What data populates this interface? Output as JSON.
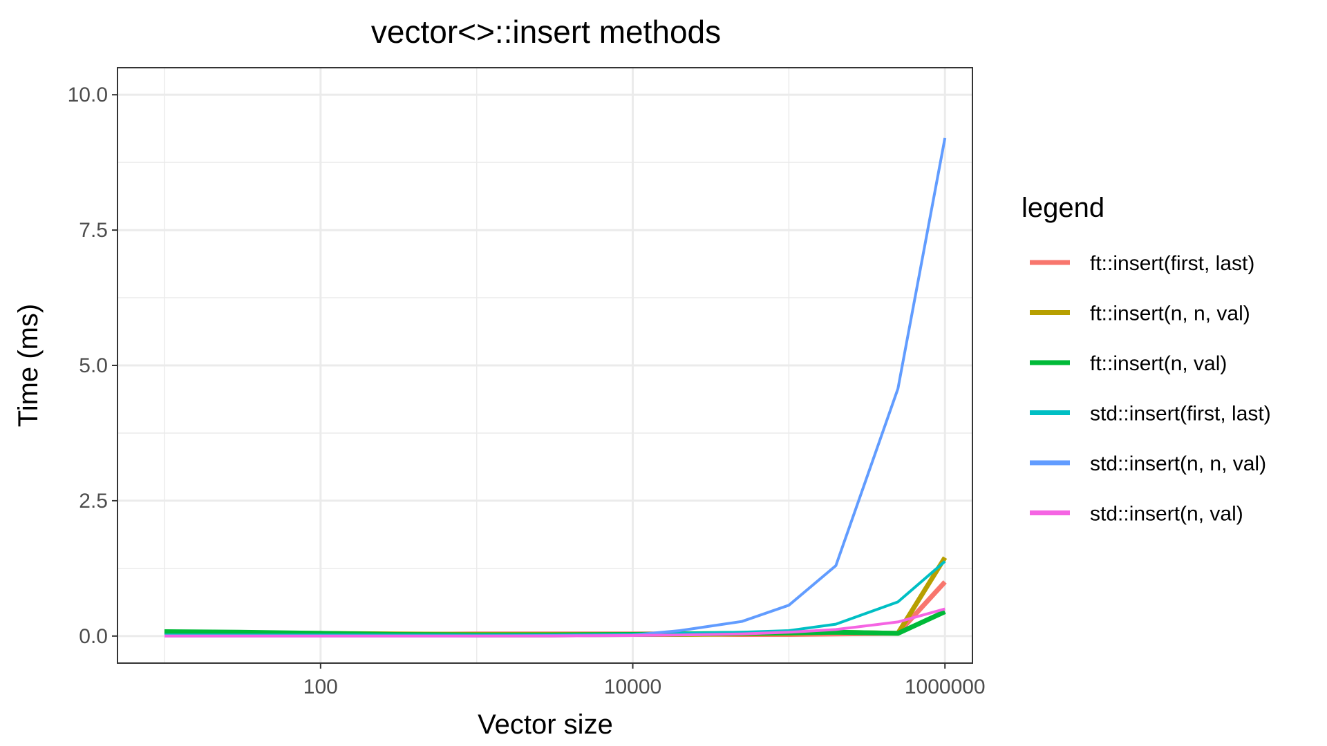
{
  "chart_data": {
    "type": "line",
    "title": "vector<>::insert methods",
    "xlabel": "Vector size",
    "ylabel": "Time (ms)",
    "x_scale": "log10",
    "xlim": [
      5,
      1500000
    ],
    "ylim": [
      -0.5,
      10.5
    ],
    "x_ticks": [
      {
        "value": 100,
        "label": "100"
      },
      {
        "value": 10000,
        "label": "10000"
      },
      {
        "value": 1000000,
        "label": "1000000"
      }
    ],
    "y_ticks": [
      {
        "value": 0,
        "label": "0.0"
      },
      {
        "value": 2.5,
        "label": "2.5"
      },
      {
        "value": 5,
        "label": "5.0"
      },
      {
        "value": 7.5,
        "label": "7.5"
      },
      {
        "value": 10,
        "label": "10.0"
      }
    ],
    "grid": true,
    "legend": {
      "title": "legend",
      "position": "right"
    },
    "x": [
      10,
      30,
      100,
      300,
      1000,
      3000,
      10000,
      20000,
      50000,
      100000,
      200000,
      500000,
      1000000
    ],
    "series": [
      {
        "name": "ft::insert(first, last)",
        "color": "#F8766D",
        "width": 7,
        "values": [
          0.05,
          0.05,
          0.04,
          0.03,
          0.04,
          0.04,
          0.04,
          0.04,
          0.03,
          0.03,
          0.04,
          0.05,
          1.0
        ]
      },
      {
        "name": "ft::insert(n, n, val)",
        "color": "#B79F00",
        "width": 7,
        "values": [
          0.07,
          0.06,
          0.05,
          0.04,
          0.03,
          0.03,
          0.03,
          0.03,
          0.04,
          0.05,
          0.07,
          0.05,
          1.45
        ]
      },
      {
        "name": "ft::insert(n, val)",
        "color": "#00BA38",
        "width": 7,
        "values": [
          0.08,
          0.07,
          0.05,
          0.03,
          0.02,
          0.02,
          0.03,
          0.04,
          0.05,
          0.06,
          0.07,
          0.05,
          0.45
        ]
      },
      {
        "name": "std::insert(first, last)",
        "color": "#00BFC4",
        "width": 4,
        "values": [
          0.02,
          0.02,
          0.02,
          0.02,
          0.02,
          0.02,
          0.03,
          0.05,
          0.07,
          0.1,
          0.22,
          0.63,
          1.38
        ]
      },
      {
        "name": "std::insert(n, n, val)",
        "color": "#619CFF",
        "width": 4,
        "values": [
          0.0,
          0.0,
          0.0,
          0.0,
          0.0,
          0.01,
          0.02,
          0.1,
          0.27,
          0.57,
          1.3,
          4.57,
          9.2
        ]
      },
      {
        "name": "std::insert(n, val)",
        "color": "#F564E3",
        "width": 4,
        "values": [
          0.0,
          0.0,
          0.0,
          0.0,
          0.0,
          0.0,
          0.01,
          0.02,
          0.04,
          0.07,
          0.12,
          0.26,
          0.5
        ]
      }
    ]
  }
}
